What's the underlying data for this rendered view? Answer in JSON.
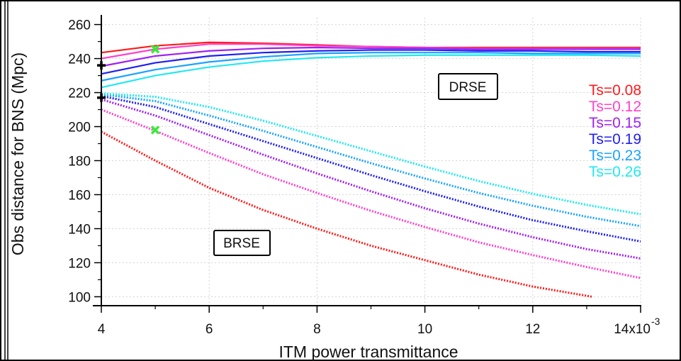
{
  "chart_data": {
    "type": "line",
    "xlabel": "ITM power transmittance",
    "ylabel": "Obs distance for BNS (Mpc)",
    "x_tick_labels": [
      "4",
      "6",
      "8",
      "10",
      "12",
      "14x10"
    ],
    "x_exponent": "-3",
    "y_tick_labels": [
      "100",
      "120",
      "140",
      "160",
      "180",
      "200",
      "220",
      "240",
      "260"
    ],
    "xlim": [
      4,
      14
    ],
    "ylim": [
      96,
      264
    ],
    "x_unit_scale": 0.001,
    "grid": true,
    "annotations": [
      "DRSE",
      "BRSE"
    ],
    "x": [
      4,
      5,
      6,
      7,
      8,
      9,
      10,
      11,
      12,
      13,
      14
    ],
    "series": [
      {
        "name": "Ts=0.08",
        "color": "#ff1a1a",
        "mode": "DRSE",
        "style": "solid",
        "values": [
          243.5,
          247.5,
          249.5,
          249,
          248,
          247,
          246.5,
          246.5,
          246.5,
          246.5,
          246.5
        ]
      },
      {
        "name": "Ts=0.12",
        "color": "#ff40c8",
        "mode": "DRSE",
        "style": "solid",
        "values": [
          240,
          245.5,
          248.5,
          248.5,
          247.5,
          247,
          246.5,
          246,
          246,
          246,
          246
        ]
      },
      {
        "name": "Ts=0.15",
        "color": "#a020f0",
        "mode": "DRSE",
        "style": "solid",
        "values": [
          235.5,
          241.5,
          244.5,
          246,
          246.5,
          246,
          246,
          245.5,
          245.5,
          245.5,
          245.5
        ]
      },
      {
        "name": "Ts=0.19",
        "color": "#2020f0",
        "mode": "DRSE",
        "style": "solid",
        "values": [
          231,
          237.5,
          241.5,
          243.5,
          244.5,
          245,
          245,
          244.5,
          244.5,
          244,
          244
        ]
      },
      {
        "name": "Ts=0.23",
        "color": "#1aa3ff",
        "mode": "DRSE",
        "style": "solid",
        "values": [
          227,
          233.5,
          238,
          241,
          243,
          243.5,
          243.5,
          243.5,
          243,
          243,
          243
        ]
      },
      {
        "name": "Ts=0.26",
        "color": "#22e8ef",
        "mode": "DRSE",
        "style": "solid",
        "values": [
          223,
          230,
          235,
          238.5,
          240.5,
          241.5,
          242,
          242,
          242,
          242,
          241.5
        ]
      },
      {
        "name": "Ts=0.08",
        "color": "#ff1a1a",
        "mode": "BRSE",
        "style": "dotted",
        "x": [
          4,
          5,
          6,
          7,
          8,
          9,
          10,
          11,
          12,
          13.1
        ],
        "values": [
          197,
          180,
          164,
          151,
          140,
          130,
          121.5,
          113,
          106,
          100
        ]
      },
      {
        "name": "Ts=0.12",
        "color": "#ff40c8",
        "mode": "BRSE",
        "style": "dotted",
        "values": [
          210,
          197.5,
          184.5,
          172,
          161,
          150.5,
          141,
          132,
          124.5,
          117.5,
          111
        ]
      },
      {
        "name": "Ts=0.15",
        "color": "#a020f0",
        "mode": "BRSE",
        "style": "dotted",
        "values": [
          216,
          206.5,
          195,
          183.5,
          172.5,
          162,
          152,
          143,
          135,
          128,
          122.5
        ]
      },
      {
        "name": "Ts=0.19",
        "color": "#2020f0",
        "mode": "BRSE",
        "style": "dotted",
        "values": [
          218,
          211.5,
          201.5,
          191.5,
          181.5,
          171.5,
          162,
          153,
          145,
          138.5,
          132.5
        ]
      },
      {
        "name": "Ts=0.23",
        "color": "#1aa3ff",
        "mode": "BRSE",
        "style": "dotted",
        "values": [
          219,
          215,
          206.5,
          197.5,
          188,
          178.5,
          169.5,
          161,
          153.5,
          147,
          141.5
        ]
      },
      {
        "name": "Ts=0.26",
        "color": "#22e8ef",
        "mode": "BRSE",
        "style": "dotted",
        "values": [
          219.5,
          217.5,
          211.5,
          203.5,
          194.5,
          185.5,
          176.5,
          168,
          160.5,
          154,
          148.5
        ]
      }
    ],
    "markers": [
      {
        "symbol": "+",
        "color": "#000000",
        "x": 4,
        "y": 236
      },
      {
        "symbol": "+",
        "color": "#000000",
        "x": 4,
        "y": 217
      },
      {
        "symbol": "x",
        "color": "#33ee33",
        "x": 5,
        "y": 245.5
      },
      {
        "symbol": "x",
        "color": "#33ee33",
        "x": 5,
        "y": 198
      }
    ],
    "legend_placement": "right"
  }
}
